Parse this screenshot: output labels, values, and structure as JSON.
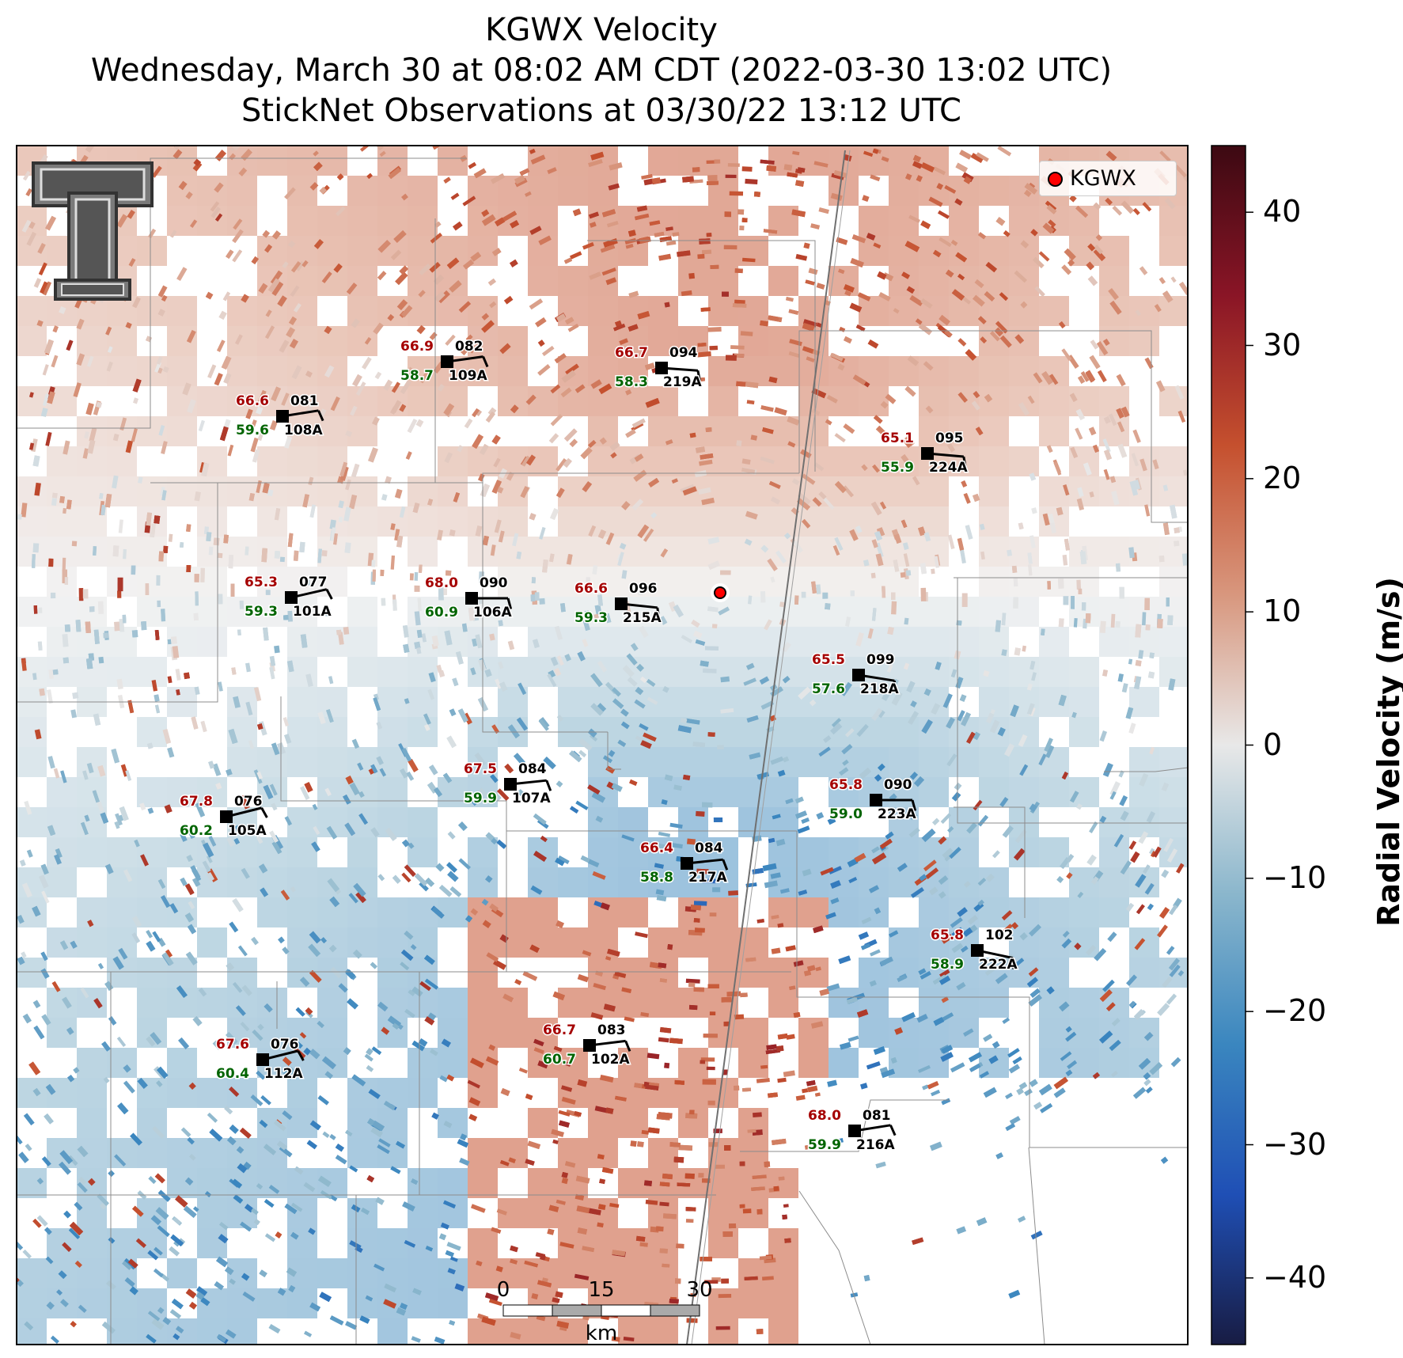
{
  "title": {
    "line1": "KGWX Velocity",
    "line2": "Wednesday, March 30 at 08:02 AM CDT (2022-03-30 13:02 UTC)",
    "line3": "StickNet Observations at 03/30/22 13:12 UTC"
  },
  "radar": {
    "name": "KGWX",
    "legend_label": "KGWX",
    "marker_color": "#ff0000"
  },
  "colorbar": {
    "label": "Radial Velocity (m/s)",
    "vmin": -45,
    "vmax": 45,
    "ticks": [
      "40",
      "30",
      "20",
      "10",
      "0",
      "−10",
      "−20",
      "−30",
      "−40"
    ],
    "colors": [
      "#181c43",
      "#1f4fb5",
      "#3a86bf",
      "#8ab6cc",
      "#e8e8e8",
      "#d8977e",
      "#c5502e",
      "#8a1526",
      "#3c0912"
    ]
  },
  "scale_bar": {
    "labels": [
      "0",
      "15",
      "30"
    ],
    "unit": "km"
  },
  "stations": [
    {
      "id": "109A",
      "temp": "66.9",
      "dew": "58.7",
      "dir": "082"
    },
    {
      "id": "219A",
      "temp": "66.7",
      "dew": "58.3",
      "dir": "094"
    },
    {
      "id": "108A",
      "temp": "66.6",
      "dew": "59.6",
      "dir": "081"
    },
    {
      "id": "224A",
      "temp": "65.1",
      "dew": "55.9",
      "dir": "095"
    },
    {
      "id": "101A",
      "temp": "65.3",
      "dew": "59.3",
      "dir": "077"
    },
    {
      "id": "106A",
      "temp": "68.0",
      "dew": "60.9",
      "dir": "090"
    },
    {
      "id": "215A",
      "temp": "66.6",
      "dew": "59.3",
      "dir": "096"
    },
    {
      "id": "218A",
      "temp": "65.5",
      "dew": "57.6",
      "dir": "099"
    },
    {
      "id": "107A",
      "temp": "67.5",
      "dew": "59.9",
      "dir": "084"
    },
    {
      "id": "105A",
      "temp": "67.8",
      "dew": "60.2",
      "dir": "076"
    },
    {
      "id": "223A",
      "temp": "65.8",
      "dew": "59.0",
      "dir": "090"
    },
    {
      "id": "217A",
      "temp": "66.4",
      "dew": "58.8",
      "dir": "084"
    },
    {
      "id": "222A",
      "temp": "65.8",
      "dew": "58.9",
      "dir": "102"
    },
    {
      "id": "102A",
      "temp": "66.7",
      "dew": "60.7",
      "dir": "083"
    },
    {
      "id": "112A",
      "temp": "67.6",
      "dew": "60.4",
      "dir": "076"
    },
    {
      "id": "216A",
      "temp": "68.0",
      "dew": "59.9",
      "dir": "081"
    }
  ],
  "colors": {
    "temp": "#a50000",
    "dew": "#006400"
  }
}
